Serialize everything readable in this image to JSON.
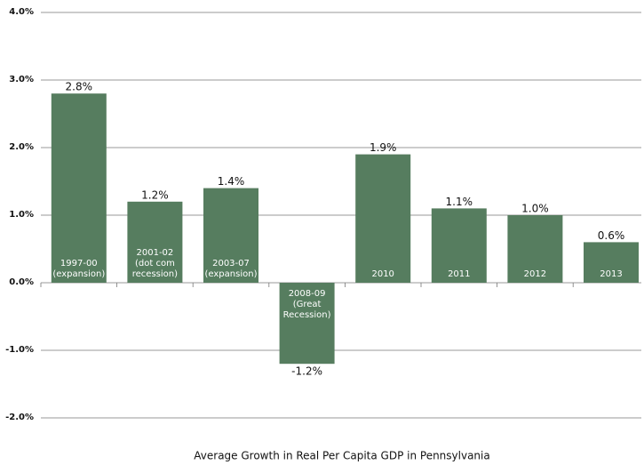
{
  "chart_data": {
    "type": "bar",
    "title": "Average Growth in Real Per Capita GDP in Pennsylvania",
    "categories": [
      "1997-00\n(expansion)",
      "2001-02\n(dot com\nrecession)",
      "2003-07\n(expansion)",
      "2008-09\n(Great\nRecession)",
      "2010",
      "2011",
      "2012",
      "2013"
    ],
    "values": [
      2.8,
      1.2,
      1.4,
      -1.2,
      1.9,
      1.1,
      1.0,
      0.6
    ],
    "value_labels": [
      "2.8%",
      "1.2%",
      "1.4%",
      "-1.2%",
      "1.9%",
      "1.1%",
      "1.0%",
      "0.6%"
    ],
    "color": "#567d5f",
    "ylim": [
      -2,
      4
    ],
    "yticks": [
      {
        "value": -2,
        "label": "-2.0%"
      },
      {
        "value": -1,
        "label": "-1.0%"
      },
      {
        "value": 0,
        "label": "0.0%"
      },
      {
        "value": 1,
        "label": "1.0%"
      },
      {
        "value": 2,
        "label": "2.0%"
      },
      {
        "value": 3,
        "label": "3.0%"
      },
      {
        "value": 4,
        "label": "4.0%"
      }
    ],
    "grid": true
  }
}
